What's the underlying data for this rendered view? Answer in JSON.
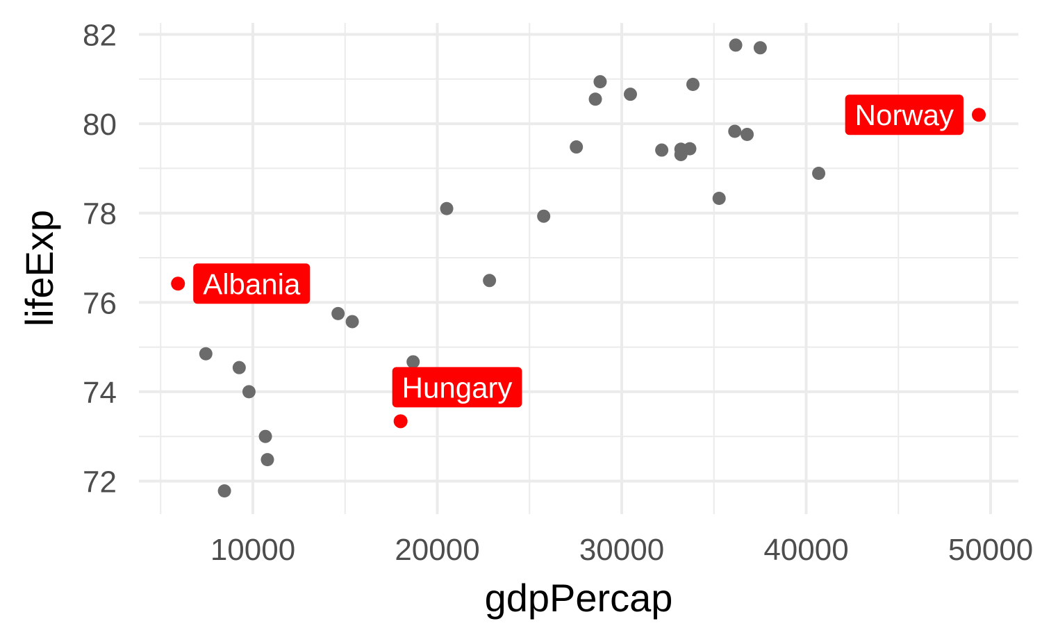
{
  "chart_data": {
    "type": "scatter",
    "title": "",
    "xlabel": "gdpPercap",
    "ylabel": "lifeExp",
    "xlim": [
      4500,
      50600
    ],
    "ylim": [
      71.4,
      82.1
    ],
    "x_major_ticks": [
      10000,
      20000,
      30000,
      40000,
      50000
    ],
    "x_minor_ticks": [
      5000,
      15000,
      25000,
      35000,
      45000
    ],
    "y_major_ticks": [
      72,
      74,
      76,
      78,
      80,
      82
    ],
    "y_minor_ticks": [
      73,
      75,
      77,
      79,
      81
    ],
    "x_tick_labels": [
      "10000",
      "20000",
      "30000",
      "40000",
      "50000"
    ],
    "y_tick_labels": [
      "72",
      "74",
      "76",
      "78",
      "80",
      "82"
    ],
    "grid": true,
    "colors": {
      "point": "#6b6b6b",
      "highlight": "#ff0000",
      "grid": "#ebebeb",
      "label_text": "#ffffff"
    },
    "points": [
      {
        "x": 7450,
        "y": 74.85
      },
      {
        "x": 9260,
        "y": 74.54
      },
      {
        "x": 9790,
        "y": 74.0
      },
      {
        "x": 10680,
        "y": 73.0
      },
      {
        "x": 10790,
        "y": 72.48
      },
      {
        "x": 8460,
        "y": 71.78
      },
      {
        "x": 14620,
        "y": 75.75
      },
      {
        "x": 15390,
        "y": 75.57
      },
      {
        "x": 18690,
        "y": 74.67
      },
      {
        "x": 20510,
        "y": 78.1
      },
      {
        "x": 22830,
        "y": 76.49
      },
      {
        "x": 25770,
        "y": 77.93
      },
      {
        "x": 27540,
        "y": 79.48
      },
      {
        "x": 28570,
        "y": 80.55
      },
      {
        "x": 28830,
        "y": 80.94
      },
      {
        "x": 30470,
        "y": 80.66
      },
      {
        "x": 32170,
        "y": 79.41
      },
      {
        "x": 33210,
        "y": 79.31
      },
      {
        "x": 33210,
        "y": 79.43
      },
      {
        "x": 33690,
        "y": 79.44
      },
      {
        "x": 33860,
        "y": 80.88
      },
      {
        "x": 35280,
        "y": 78.33
      },
      {
        "x": 36130,
        "y": 79.83
      },
      {
        "x": 36180,
        "y": 81.76
      },
      {
        "x": 36800,
        "y": 79.76
      },
      {
        "x": 37510,
        "y": 81.7
      },
      {
        "x": 40680,
        "y": 78.89
      }
    ],
    "highlighted": [
      {
        "label": "Albania",
        "x": 5940,
        "y": 76.42,
        "label_position": "right"
      },
      {
        "label": "Hungary",
        "x": 18010,
        "y": 73.34,
        "label_position": "above"
      },
      {
        "label": "Norway",
        "x": 49360,
        "y": 80.2,
        "label_position": "left"
      }
    ]
  }
}
